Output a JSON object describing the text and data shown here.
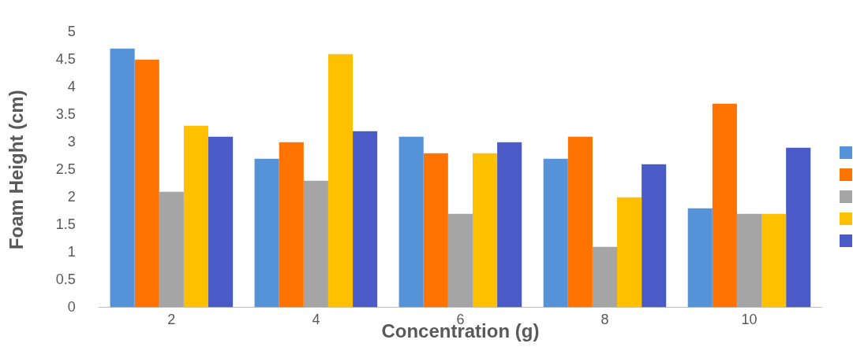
{
  "chart_data": {
    "type": "bar",
    "xlabel": "Concentration (g)",
    "ylabel": "Foam Height (cm)",
    "categories": [
      "2",
      "4",
      "6",
      "8",
      "10"
    ],
    "series": [
      {
        "color": "#5592d8",
        "values": [
          4.7,
          2.7,
          3.1,
          2.7,
          1.8
        ]
      },
      {
        "color": "#ff7300",
        "values": [
          4.5,
          3.0,
          2.8,
          3.1,
          3.7
        ]
      },
      {
        "color": "#a5a5a5",
        "values": [
          2.1,
          2.3,
          1.7,
          1.1,
          1.7
        ]
      },
      {
        "color": "#ffc000",
        "values": [
          3.3,
          4.6,
          2.8,
          2.0,
          1.7
        ]
      },
      {
        "color": "#4a5bc8",
        "values": [
          3.1,
          3.2,
          3.0,
          2.6,
          2.9
        ]
      }
    ],
    "ylim": [
      0,
      5
    ],
    "yticks": [
      0,
      0.5,
      1,
      1.5,
      2,
      2.5,
      3,
      3.5,
      4,
      4.5,
      5
    ],
    "grid": false
  }
}
